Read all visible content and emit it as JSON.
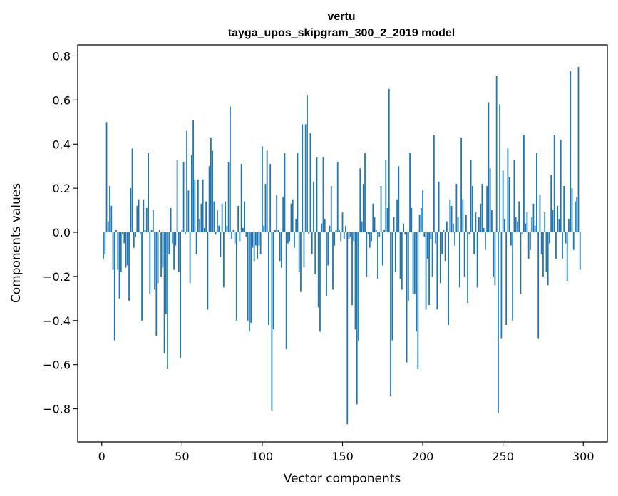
{
  "chart_data": {
    "type": "bar",
    "title_line1": "vertu",
    "title_line2": "tayga_upos_skipgram_300_2_2019 model",
    "xlabel": "Vector components",
    "ylabel": "Components values",
    "xlim": [
      -15,
      315
    ],
    "ylim": [
      -0.95,
      0.85
    ],
    "xticks": [
      0,
      50,
      100,
      150,
      200,
      250,
      300
    ],
    "yticks": [
      -0.8,
      -0.6,
      -0.4,
      -0.2,
      0.0,
      0.2,
      0.4,
      0.6,
      0.8
    ],
    "ytick_labels": [
      "−0.8",
      "−0.6",
      "−0.4",
      "−0.2",
      "0.0",
      "0.2",
      "0.4",
      "0.6",
      "0.8"
    ],
    "bar_color": "#1f77b4",
    "values": [
      -0.12,
      -0.1,
      0.5,
      0.05,
      0.21,
      0.12,
      -0.17,
      -0.49,
      0.01,
      -0.17,
      -0.3,
      -0.18,
      -0.01,
      -0.05,
      -0.16,
      -0.15,
      -0.31,
      0.2,
      0.38,
      -0.07,
      -0.02,
      0.12,
      0.15,
      -0.01,
      -0.4,
      0.15,
      0.01,
      0.11,
      0.36,
      -0.28,
      0.01,
      0.1,
      -0.26,
      -0.47,
      -0.23,
      0.01,
      -0.2,
      -0.16,
      -0.55,
      -0.37,
      -0.62,
      -0.1,
      0.11,
      -0.05,
      -0.17,
      -0.06,
      0.33,
      -0.18,
      -0.57,
      0.01,
      0.32,
      -0.01,
      0.46,
      0.19,
      -0.23,
      0.35,
      0.51,
      0.24,
      -0.1,
      0.24,
      0.06,
      0.13,
      0.24,
      0.02,
      0.14,
      -0.35,
      0.3,
      0.43,
      0.37,
      0.14,
      -0.01,
      0.1,
      0.03,
      -0.11,
      0.13,
      -0.25,
      0.14,
      0.03,
      0.32,
      0.57,
      -0.03,
      0.01,
      -0.05,
      -0.4,
      0.12,
      -0.04,
      0.31,
      0.02,
      0.14,
      -0.02,
      -0.4,
      -0.45,
      -0.41,
      -0.07,
      -0.13,
      -0.06,
      -0.12,
      -0.06,
      -0.1,
      0.39,
      0.03,
      0.22,
      0.37,
      -0.42,
      0.31,
      -0.81,
      -0.44,
      0.01,
      0.17,
      0.01,
      -0.13,
      -0.16,
      0.16,
      0.36,
      -0.53,
      -0.05,
      -0.04,
      0.13,
      0.15,
      -0.07,
      0.06,
      0.36,
      -0.18,
      -0.27,
      0.49,
      -0.16,
      0.49,
      0.62,
      -0.01,
      0.45,
      -0.1,
      0.23,
      -0.19,
      0.34,
      -0.34,
      -0.45,
      0.04,
      0.34,
      0.06,
      -0.29,
      -0.15,
      0.03,
      0.21,
      -0.26,
      -0.06,
      0.01,
      0.32,
      0.01,
      -0.04,
      0.09,
      -0.03,
      0.03,
      -0.87,
      -0.03,
      -0.02,
      -0.33,
      -0.04,
      -0.44,
      -0.78,
      -0.49,
      0.29,
      0.05,
      0.22,
      0.36,
      -0.2,
      -0.01,
      -0.07,
      -0.04,
      0.13,
      0.07,
      0.01,
      -0.21,
      -0.02,
      0.21,
      -0.15,
      0.01,
      0.33,
      0.11,
      0.65,
      -0.74,
      -0.49,
      0.07,
      -0.18,
      0.15,
      0.3,
      -0.21,
      -0.26,
      0.04,
      -0.01,
      -0.59,
      -0.31,
      0.36,
      0.11,
      -0.28,
      -0.28,
      -0.45,
      -0.62,
      0.08,
      0.11,
      0.19,
      -0.02,
      -0.35,
      -0.12,
      -0.33,
      -0.03,
      -0.2,
      0.44,
      -0.05,
      -0.35,
      0.23,
      -0.23,
      -0.1,
      0.01,
      -0.13,
      0.05,
      -0.42,
      0.15,
      0.12,
      0.04,
      -0.06,
      0.22,
      0.07,
      -0.25,
      0.43,
      0.15,
      -0.2,
      0.08,
      -0.32,
      -0.01,
      0.33,
      0.21,
      -0.1,
      0.09,
      -0.25,
      0.07,
      0.13,
      0.22,
      0.02,
      -0.08,
      0.21,
      0.59,
      0.29,
      0.1,
      -0.2,
      -0.24,
      0.71,
      -0.82,
      0.58,
      -0.48,
      0.28,
      0.06,
      -0.42,
      0.38,
      0.25,
      -0.06,
      -0.4,
      0.33,
      0.07,
      0.05,
      0.14,
      -0.28,
      -0.01,
      0.44,
      0.04,
      0.09,
      -0.12,
      -0.08,
      0.07,
      0.13,
      0.03,
      0.36,
      -0.48,
      0.17,
      -0.1,
      -0.2,
      0.09,
      -0.18,
      -0.24,
      -0.05,
      0.26,
      0.1,
      0.44,
      -0.12,
      0.12,
      0.06,
      0.42,
      -0.12,
      0.21,
      -0.05,
      -0.22,
      0.06,
      0.73,
      0.2,
      -0.08,
      0.14,
      0.16,
      0.75,
      -0.17
    ]
  }
}
